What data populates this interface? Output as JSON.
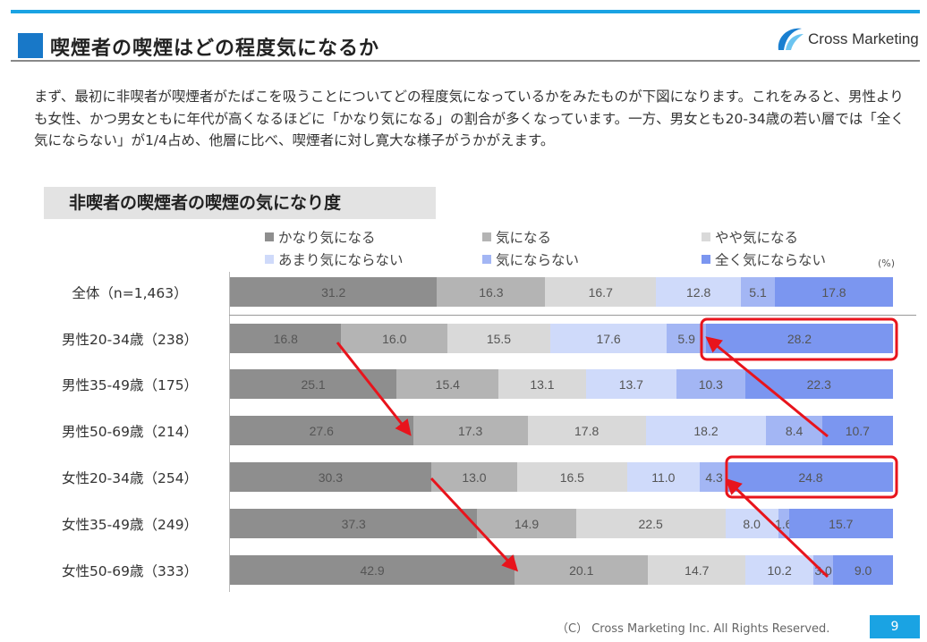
{
  "header": {
    "title": "喫煙者の喫煙はどの程度気になるか",
    "logo_text": "Cross Marketing"
  },
  "intro": "まず、最初に非喫者が喫煙者がたばこを吸うことについてどの程度気になっているかをみたものが下図になります。これをみると、男性よりも女性、かつ男女ともに年代が高くなるほどに「かなり気になる」の割合が多くなっています。一方、男女とも20-34歳の若い層では「全く気にならない」が1/4占め、他層に比べ、喫煙者に対し寛大な様子がうかがえます。",
  "chart_data": {
    "type": "stacked-bar-horizontal",
    "title": "非喫者の喫煙者の喫煙の気になり度",
    "unit": "(%)",
    "categories": [
      "全体（n=1,463）",
      "男性20-34歳（238）",
      "男性35-49歳（175）",
      "男性50-69歳（214）",
      "女性20-34歳（254）",
      "女性35-49歳（249）",
      "女性50-69歳（333）"
    ],
    "series": [
      {
        "name": "かなり気になる",
        "color": "#8e8e8e",
        "values": [
          31.2,
          16.8,
          25.1,
          27.6,
          30.3,
          37.3,
          42.9
        ]
      },
      {
        "name": "気になる",
        "color": "#b4b4b4",
        "values": [
          16.3,
          16.0,
          15.4,
          17.3,
          13.0,
          14.9,
          20.1
        ]
      },
      {
        "name": "やや気になる",
        "color": "#d9d9d9",
        "values": [
          16.7,
          15.5,
          13.1,
          17.8,
          16.5,
          22.5,
          14.7
        ]
      },
      {
        "name": "あまり気にならない",
        "color": "#cfdafa",
        "values": [
          12.8,
          17.6,
          13.7,
          18.2,
          11.0,
          8.0,
          10.2
        ]
      },
      {
        "name": "気にならない",
        "color": "#a3b6f4",
        "values": [
          5.1,
          5.9,
          10.3,
          8.4,
          4.3,
          1.6,
          3.0
        ]
      },
      {
        "name": "全く気にならない",
        "color": "#7b96f0",
        "values": [
          17.8,
          28.2,
          22.3,
          10.7,
          24.8,
          15.7,
          9.0
        ]
      }
    ],
    "legend_position": "top"
  },
  "footer": {
    "copyright": "（C） Cross Marketing Inc. All Rights Reserved.",
    "page": "9"
  }
}
